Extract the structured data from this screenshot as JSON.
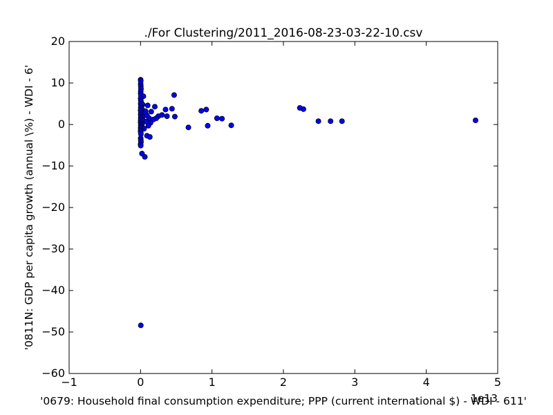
{
  "chart_data": {
    "type": "scatter",
    "title": "./For Clustering/2011_2016-08-23-03-22-10.csv",
    "xlabel": "'0679: Household final consumption expenditure; PPP  (current international $) - WDI - 611'",
    "ylabel": "'0811N: GDP per capita growth  (annual \\%) - WDI - 6'",
    "x_offset_text": "1e13",
    "xlim": [
      -1,
      5
    ],
    "ylim": [
      -60,
      20
    ],
    "x_ticks": [
      -1,
      0,
      1,
      2,
      3,
      4,
      5
    ],
    "x_tick_labels": [
      "−1",
      "0",
      "1",
      "2",
      "3",
      "4",
      "5"
    ],
    "y_ticks": [
      -60,
      -50,
      -40,
      -30,
      -20,
      -10,
      0,
      10,
      20
    ],
    "y_tick_labels": [
      "−60",
      "−50",
      "−40",
      "−30",
      "−20",
      "−10",
      "0",
      "10",
      "20"
    ],
    "grid": false,
    "legend": "none",
    "marker_color": "#0000ff",
    "marker_edge_color": "#000000",
    "x_unit_multiplier": 10000000000000.0,
    "points": [
      {
        "x": 0.001,
        "y": 10.8
      },
      {
        "x": 0.003,
        "y": 10.5
      },
      {
        "x": 0.002,
        "y": 9.8
      },
      {
        "x": 0.004,
        "y": 9.2
      },
      {
        "x": 0.006,
        "y": 8.6
      },
      {
        "x": 0.003,
        "y": 8.0
      },
      {
        "x": 0.002,
        "y": 7.5
      },
      {
        "x": 0.005,
        "y": 7.0
      },
      {
        "x": 0.04,
        "y": 6.8
      },
      {
        "x": 0.001,
        "y": 6.3
      },
      {
        "x": 0.004,
        "y": 5.8
      },
      {
        "x": 0.008,
        "y": 5.4
      },
      {
        "x": 0.002,
        "y": 5.0
      },
      {
        "x": 0.03,
        "y": 4.8
      },
      {
        "x": 0.1,
        "y": 4.6
      },
      {
        "x": 0.006,
        "y": 4.4
      },
      {
        "x": 0.003,
        "y": 4.0
      },
      {
        "x": 0.02,
        "y": 3.7
      },
      {
        "x": 0.001,
        "y": 3.4
      },
      {
        "x": 0.07,
        "y": 3.2
      },
      {
        "x": 0.15,
        "y": 3.1
      },
      {
        "x": 0.004,
        "y": 2.9
      },
      {
        "x": 0.05,
        "y": 2.6
      },
      {
        "x": 0.002,
        "y": 2.4
      },
      {
        "x": 0.09,
        "y": 2.2
      },
      {
        "x": 0.005,
        "y": 2.0
      },
      {
        "x": 0.03,
        "y": 1.8
      },
      {
        "x": 0.003,
        "y": 1.6
      },
      {
        "x": 0.12,
        "y": 1.5
      },
      {
        "x": 0.006,
        "y": 1.3
      },
      {
        "x": 0.18,
        "y": 1.2
      },
      {
        "x": 0.002,
        "y": 1.0
      },
      {
        "x": 0.04,
        "y": 0.9
      },
      {
        "x": 0.08,
        "y": 0.7
      },
      {
        "x": 0.001,
        "y": 0.5
      },
      {
        "x": 0.14,
        "y": 0.4
      },
      {
        "x": 0.005,
        "y": 0.2
      },
      {
        "x": 0.02,
        "y": 0.0
      },
      {
        "x": 0.003,
        "y": -0.2
      },
      {
        "x": 0.11,
        "y": -0.3
      },
      {
        "x": 0.006,
        "y": -0.5
      },
      {
        "x": 0.002,
        "y": -0.8
      },
      {
        "x": 0.05,
        "y": -1.0
      },
      {
        "x": 0.004,
        "y": -1.2
      },
      {
        "x": 0.001,
        "y": -1.5
      },
      {
        "x": 0.003,
        "y": -1.9
      },
      {
        "x": 0.005,
        "y": -2.3
      },
      {
        "x": 0.09,
        "y": -2.7
      },
      {
        "x": 0.13,
        "y": -3.0
      },
      {
        "x": 0.002,
        "y": -3.3
      },
      {
        "x": 0.004,
        "y": -3.8
      },
      {
        "x": 0.006,
        "y": -4.2
      },
      {
        "x": 0.001,
        "y": -4.8
      },
      {
        "x": 0.003,
        "y": -5.1
      },
      {
        "x": 0.02,
        "y": -7.0
      },
      {
        "x": 0.06,
        "y": -7.8
      },
      {
        "x": 0.2,
        "y": 4.3
      },
      {
        "x": 0.25,
        "y": 2.0
      },
      {
        "x": 0.3,
        "y": 2.3
      },
      {
        "x": 0.22,
        "y": 1.5
      },
      {
        "x": 0.35,
        "y": 3.6
      },
      {
        "x": 0.37,
        "y": 2.0
      },
      {
        "x": 0.44,
        "y": 3.8
      },
      {
        "x": 0.47,
        "y": 7.1
      },
      {
        "x": 0.48,
        "y": 1.9
      },
      {
        "x": 0.67,
        "y": -0.7
      },
      {
        "x": 0.85,
        "y": 3.3
      },
      {
        "x": 0.92,
        "y": 3.6
      },
      {
        "x": 0.94,
        "y": -0.3
      },
      {
        "x": 1.07,
        "y": 1.5
      },
      {
        "x": 1.14,
        "y": 1.4
      },
      {
        "x": 1.27,
        "y": -0.2
      },
      {
        "x": 2.23,
        "y": 4.0
      },
      {
        "x": 2.28,
        "y": 3.7
      },
      {
        "x": 2.49,
        "y": 0.8
      },
      {
        "x": 2.66,
        "y": 0.8
      },
      {
        "x": 2.82,
        "y": 0.8
      },
      {
        "x": 4.69,
        "y": 1.0
      },
      {
        "x": 0.004,
        "y": -48.4
      }
    ]
  }
}
